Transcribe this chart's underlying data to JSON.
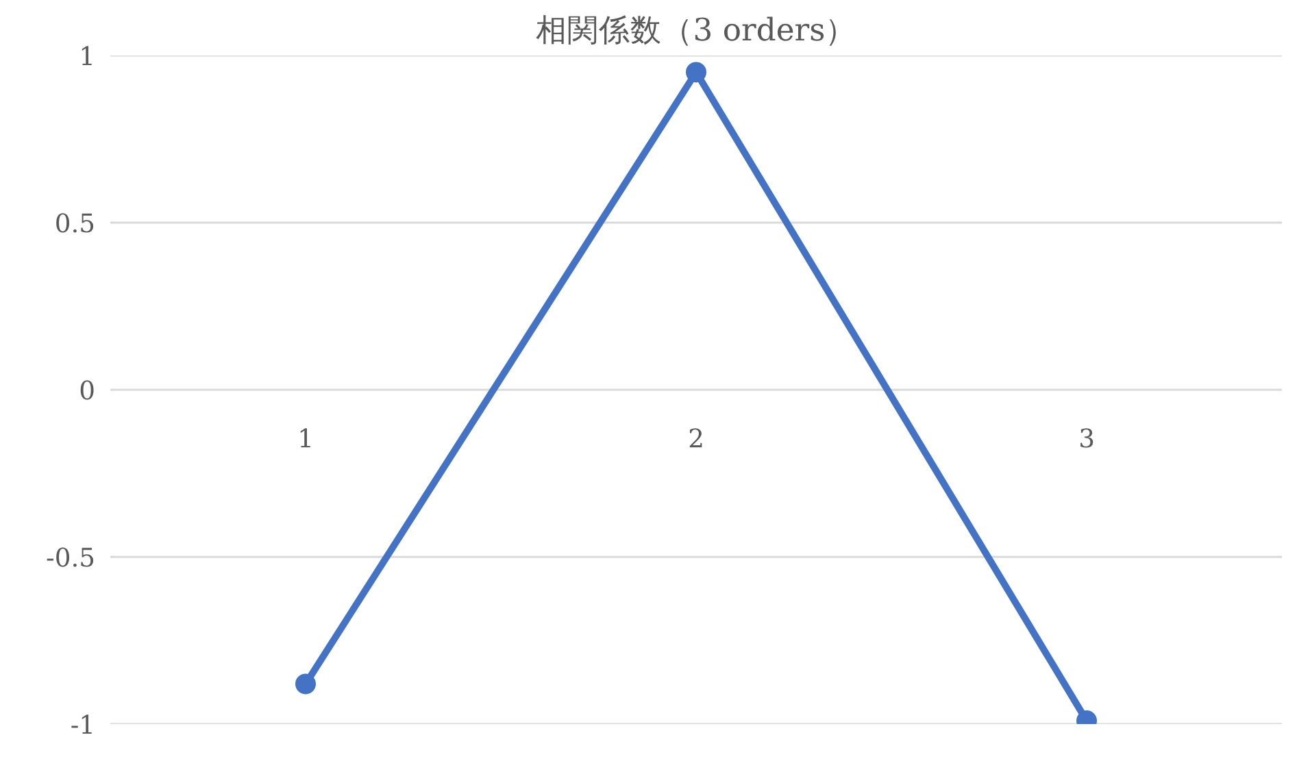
{
  "chart_data": {
    "type": "line",
    "title": "相関係数（3 orders）",
    "categories": [
      "1",
      "2",
      "3"
    ],
    "series": [
      {
        "color": "#4472c4",
        "values": [
          -0.88,
          0.95,
          -0.99
        ]
      }
    ],
    "ylim": [
      -1,
      1
    ],
    "yticks": [
      {
        "value": -1,
        "label": "-1"
      },
      {
        "value": -0.5,
        "label": "-0.5"
      },
      {
        "value": 0,
        "label": "0"
      },
      {
        "value": 0.5,
        "label": "0.5"
      },
      {
        "value": 1,
        "label": "1"
      }
    ],
    "grid": "y",
    "marker": "circle",
    "line_style": "solid"
  }
}
